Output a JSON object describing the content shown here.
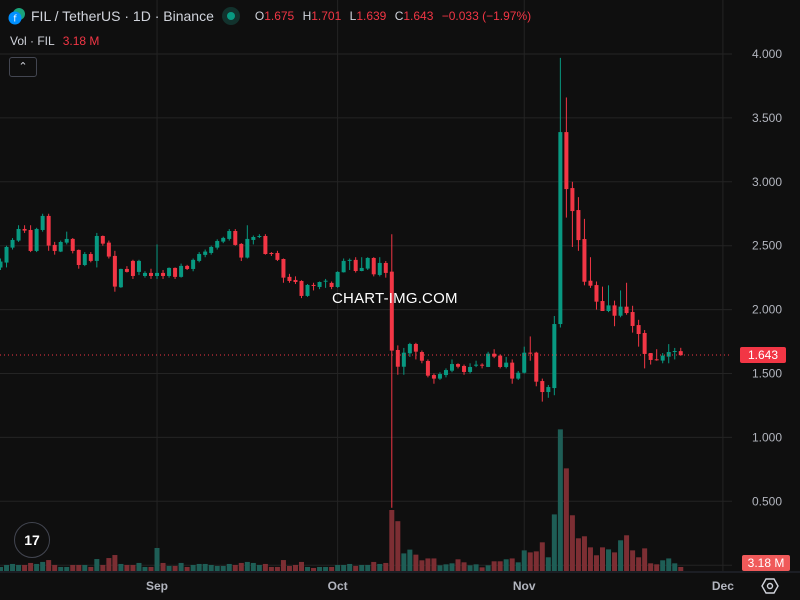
{
  "header": {
    "symbol_title": "FIL / TetherUS · 1D · Binance",
    "market_status": "open",
    "ohlc": {
      "o_label": "O",
      "o": "1.675",
      "h_label": "H",
      "h": "1.701",
      "l_label": "L",
      "l": "1.639",
      "c_label": "C",
      "c": "1.643",
      "change": "−0.033 (−1.97%)"
    },
    "volume_label": "Vol · FIL",
    "volume_value": "3.18 M",
    "collapse_icon": "chevron-up-icon"
  },
  "watermark": "CHART-IMG.COM",
  "colors": {
    "up": "#089981",
    "down": "#f23645",
    "up_volume": "#1e5e56",
    "down_volume": "#7c2e33",
    "background": "#0f0f0f",
    "grid": "#242424"
  },
  "chart_data": {
    "type": "candlestick",
    "title": "FIL / TetherUS · 1D · Binance",
    "ylim": [
      0,
      4.1
    ],
    "y_ticks": [
      "0.500",
      "1.000",
      "1.500",
      "2.000",
      "2.500",
      "3.000",
      "3.500",
      "4.000"
    ],
    "x_ticks": [
      {
        "label": "Sep",
        "date": "09-01"
      },
      {
        "label": "Oct",
        "date": "10-01"
      },
      {
        "label": "Nov",
        "date": "11-01"
      },
      {
        "label": "Dec",
        "date": "12-01"
      }
    ],
    "grid": true,
    "last_price": "1.643",
    "last_volume": "3.18 M",
    "columns": [
      "date",
      "open",
      "high",
      "low",
      "close",
      "volume_M"
    ],
    "candles": [
      [
        "08-06",
        2.329,
        2.4,
        2.31,
        2.376,
        3.2
      ],
      [
        "08-07",
        2.368,
        2.5,
        2.33,
        2.49,
        4.8
      ],
      [
        "08-08",
        2.485,
        2.56,
        2.47,
        2.545,
        5.6
      ],
      [
        "08-09",
        2.54,
        2.66,
        2.53,
        2.631,
        4.8
      ],
      [
        "08-10",
        2.631,
        2.66,
        2.6,
        2.618,
        4.8
      ],
      [
        "08-11",
        2.623,
        2.66,
        2.45,
        2.459,
        6.4
      ],
      [
        "08-12",
        2.459,
        2.64,
        2.45,
        2.631,
        5.6
      ],
      [
        "08-13",
        2.623,
        2.75,
        2.61,
        2.733,
        7.2
      ],
      [
        "08-14",
        2.733,
        2.75,
        2.46,
        2.501,
        8.7
      ],
      [
        "08-15",
        2.506,
        2.53,
        2.43,
        2.459,
        4.8
      ],
      [
        "08-16",
        2.454,
        2.54,
        2.45,
        2.529,
        3.2
      ],
      [
        "08-17",
        2.524,
        2.61,
        2.51,
        2.553,
        3.2
      ],
      [
        "08-18",
        2.553,
        2.56,
        2.44,
        2.459,
        4.8
      ],
      [
        "08-19",
        2.467,
        2.47,
        2.32,
        2.349,
        4.8
      ],
      [
        "08-20",
        2.349,
        2.45,
        2.34,
        2.435,
        4.8
      ],
      [
        "08-21",
        2.435,
        2.45,
        2.37,
        2.381,
        3.2
      ],
      [
        "08-22",
        2.381,
        2.6,
        2.33,
        2.576,
        9.5
      ],
      [
        "08-23",
        2.576,
        2.58,
        2.5,
        2.516,
        4.8
      ],
      [
        "08-24",
        2.524,
        2.54,
        2.4,
        2.415,
        10.3
      ],
      [
        "08-25",
        2.42,
        2.46,
        2.14,
        2.18,
        12.7
      ],
      [
        "08-26",
        2.175,
        2.32,
        2.17,
        2.318,
        5.6
      ],
      [
        "08-27",
        2.318,
        2.34,
        2.29,
        2.295,
        4.8
      ],
      [
        "08-28",
        2.381,
        2.39,
        2.24,
        2.263,
        4.8
      ],
      [
        "08-29",
        2.295,
        2.39,
        2.27,
        2.381,
        6.4
      ],
      [
        "08-30",
        2.263,
        2.3,
        2.25,
        2.287,
        3.2
      ],
      [
        "08-31",
        2.287,
        2.32,
        2.24,
        2.263,
        3.2
      ],
      [
        "09-01",
        2.263,
        2.51,
        2.24,
        2.287,
        18.3
      ],
      [
        "09-02",
        2.287,
        2.31,
        2.24,
        2.263,
        6.4
      ],
      [
        "09-03",
        2.263,
        2.33,
        2.25,
        2.326,
        4.0
      ],
      [
        "09-04",
        2.326,
        2.33,
        2.24,
        2.256,
        4.0
      ],
      [
        "09-05",
        2.256,
        2.36,
        2.25,
        2.342,
        6.4
      ],
      [
        "09-06",
        2.342,
        2.35,
        2.31,
        2.318,
        3.2
      ],
      [
        "09-07",
        2.318,
        2.4,
        2.3,
        2.389,
        4.8
      ],
      [
        "09-08",
        2.381,
        2.45,
        2.37,
        2.435,
        5.6
      ],
      [
        "09-09",
        2.428,
        2.47,
        2.41,
        2.454,
        5.6
      ],
      [
        "09-10",
        2.443,
        2.5,
        2.43,
        2.49,
        4.8
      ],
      [
        "09-11",
        2.485,
        2.55,
        2.47,
        2.537,
        4.0
      ],
      [
        "09-12",
        2.532,
        2.57,
        2.52,
        2.561,
        4.0
      ],
      [
        "09-13",
        2.553,
        2.63,
        2.54,
        2.615,
        5.6
      ],
      [
        "09-14",
        2.615,
        2.63,
        2.5,
        2.506,
        4.8
      ],
      [
        "09-15",
        2.514,
        2.52,
        2.38,
        2.407,
        6.4
      ],
      [
        "09-16",
        2.407,
        2.66,
        2.4,
        2.553,
        7.2
      ],
      [
        "09-17",
        2.545,
        2.58,
        2.51,
        2.568,
        6.4
      ],
      [
        "09-18",
        2.571,
        2.59,
        2.56,
        2.576,
        4.8
      ],
      [
        "09-19",
        2.576,
        2.59,
        2.43,
        2.435,
        5.6
      ],
      [
        "09-20",
        2.443,
        2.45,
        2.42,
        2.435,
        3.2
      ],
      [
        "09-21",
        2.443,
        2.46,
        2.38,
        2.389,
        3.2
      ],
      [
        "09-22",
        2.396,
        2.4,
        2.21,
        2.25,
        8.7
      ],
      [
        "09-23",
        2.256,
        2.28,
        2.21,
        2.224,
        4.0
      ],
      [
        "09-24",
        2.232,
        2.26,
        2.2,
        2.216,
        4.8
      ],
      [
        "09-25",
        2.224,
        2.23,
        2.09,
        2.107,
        7.2
      ],
      [
        "09-26",
        2.107,
        2.2,
        2.1,
        2.193,
        3.2
      ],
      [
        "09-27",
        2.193,
        2.21,
        2.15,
        2.185,
        2.4
      ],
      [
        "09-28",
        2.177,
        2.22,
        2.16,
        2.216,
        3.2
      ],
      [
        "09-29",
        2.22,
        2.24,
        2.17,
        2.226,
        3.2
      ],
      [
        "09-30",
        2.209,
        2.22,
        2.16,
        2.177,
        3.2
      ],
      [
        "10-01",
        2.177,
        2.3,
        2.17,
        2.295,
        4.8
      ],
      [
        "10-02",
        2.292,
        2.4,
        2.29,
        2.381,
        4.8
      ],
      [
        "10-03",
        2.385,
        2.4,
        2.31,
        2.389,
        5.6
      ],
      [
        "10-04",
        2.389,
        2.41,
        2.29,
        2.302,
        4.0
      ],
      [
        "10-05",
        2.302,
        2.41,
        2.3,
        2.326,
        4.8
      ],
      [
        "10-06",
        2.321,
        2.41,
        2.31,
        2.404,
        4.8
      ],
      [
        "10-07",
        2.404,
        2.41,
        2.26,
        2.276,
        7.2
      ],
      [
        "10-08",
        2.271,
        2.41,
        2.26,
        2.365,
        5.6
      ],
      [
        "10-09",
        2.365,
        2.38,
        2.25,
        2.287,
        6.4
      ],
      [
        "10-10",
        2.297,
        2.59,
        0.45,
        1.679,
        48.5
      ],
      [
        "10-11",
        1.684,
        1.72,
        1.49,
        1.553,
        39.6
      ],
      [
        "10-12",
        1.553,
        1.7,
        1.49,
        1.663,
        14
      ],
      [
        "10-13",
        1.658,
        1.74,
        1.63,
        1.731,
        17
      ],
      [
        "10-14",
        1.731,
        1.74,
        1.61,
        1.671,
        13
      ],
      [
        "10-15",
        1.668,
        1.68,
        1.58,
        1.6,
        8.5
      ],
      [
        "10-16",
        1.598,
        1.61,
        1.47,
        1.483,
        10
      ],
      [
        "10-17",
        1.488,
        1.5,
        1.42,
        1.46,
        10
      ],
      [
        "10-18",
        1.46,
        1.51,
        1.45,
        1.496,
        4.5
      ],
      [
        "10-19",
        1.488,
        1.54,
        1.47,
        1.527,
        5.3
      ],
      [
        "10-20",
        1.522,
        1.61,
        1.51,
        1.574,
        6.1
      ],
      [
        "10-21",
        1.574,
        1.58,
        1.54,
        1.553,
        9.3
      ],
      [
        "10-22",
        1.559,
        1.57,
        1.49,
        1.512,
        6.9
      ],
      [
        "10-23",
        1.512,
        1.58,
        1.5,
        1.551,
        4.5
      ],
      [
        "10-24",
        1.562,
        1.6,
        1.55,
        1.569,
        5.3
      ],
      [
        "10-25",
        1.569,
        1.58,
        1.54,
        1.561,
        2.9
      ],
      [
        "10-26",
        1.551,
        1.67,
        1.55,
        1.655,
        4.5
      ],
      [
        "10-27",
        1.655,
        1.69,
        1.62,
        1.632,
        7.7
      ],
      [
        "10-28",
        1.64,
        1.65,
        1.54,
        1.551,
        7.7
      ],
      [
        "10-29",
        1.551,
        1.63,
        1.54,
        1.585,
        9.3
      ],
      [
        "10-30",
        1.585,
        1.61,
        1.42,
        1.46,
        10
      ],
      [
        "10-31",
        1.46,
        1.52,
        1.45,
        1.506,
        6.9
      ],
      [
        "11-01",
        1.506,
        1.71,
        1.5,
        1.663,
        16.4
      ],
      [
        "11-02",
        1.663,
        1.79,
        1.6,
        1.658,
        14.8
      ],
      [
        "11-03",
        1.663,
        1.67,
        1.4,
        1.436,
        15.6
      ],
      [
        "11-04",
        1.441,
        1.46,
        1.28,
        1.355,
        22.8
      ],
      [
        "11-05",
        1.355,
        1.41,
        1.31,
        1.394,
        10.9
      ],
      [
        "11-06",
        1.386,
        1.95,
        1.33,
        1.887,
        45
      ],
      [
        "11-07",
        1.887,
        3.97,
        1.86,
        3.389,
        112.6
      ],
      [
        "11-08",
        3.389,
        3.66,
        2.72,
        2.943,
        81.6
      ],
      [
        "11-09",
        2.951,
        3.0,
        2.49,
        2.771,
        44.3
      ],
      [
        "11-10",
        2.779,
        2.88,
        2.46,
        2.544,
        26
      ],
      [
        "11-11",
        2.552,
        2.71,
        2.19,
        2.218,
        27.6
      ],
      [
        "11-12",
        2.226,
        2.41,
        2.17,
        2.187,
        18.8
      ],
      [
        "11-13",
        2.192,
        2.22,
        2.0,
        2.062,
        12.5
      ],
      [
        "11-14",
        2.067,
        2.18,
        1.99,
        1.989,
        18.8
      ],
      [
        "11-15",
        1.989,
        2.19,
        1.98,
        2.033,
        17.2
      ],
      [
        "11-16",
        2.033,
        2.07,
        1.87,
        1.952,
        14.8
      ],
      [
        "11-17",
        1.952,
        2.15,
        1.94,
        2.023,
        24.4
      ],
      [
        "11-18",
        2.023,
        2.21,
        1.96,
        1.973,
        28.4
      ],
      [
        "11-19",
        1.981,
        2.03,
        1.82,
        1.872,
        16.4
      ],
      [
        "11-20",
        1.879,
        1.92,
        1.71,
        1.809,
        10.9
      ],
      [
        "11-21",
        1.817,
        1.84,
        1.54,
        1.653,
        18
      ],
      [
        "11-22",
        1.66,
        1.66,
        1.57,
        1.606,
        6.1
      ],
      [
        "11-23",
        1.611,
        1.69,
        1.6,
        1.606,
        5.3
      ],
      [
        "11-24",
        1.601,
        1.66,
        1.58,
        1.64,
        8.5
      ],
      [
        "11-25",
        1.632,
        1.73,
        1.58,
        1.668,
        10
      ],
      [
        "11-26",
        1.668,
        1.7,
        1.61,
        1.676,
        6.1
      ],
      [
        "11-27",
        1.675,
        1.701,
        1.639,
        1.643,
        3.18
      ]
    ]
  }
}
